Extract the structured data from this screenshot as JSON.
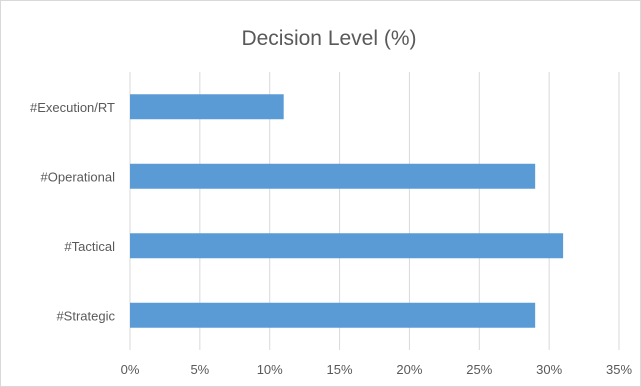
{
  "chart_data": {
    "type": "bar",
    "orientation": "horizontal",
    "title": "Decision Level (%)",
    "xlabel": "",
    "ylabel": "",
    "categories": [
      "#Strategic",
      "#Tactical",
      "#Operational",
      "#Execution/RT"
    ],
    "values": [
      0.29,
      0.31,
      0.29,
      0.11
    ],
    "xlim": [
      0,
      0.35
    ],
    "xticks": [
      0,
      0.05,
      0.1,
      0.15,
      0.2,
      0.25,
      0.3,
      0.35
    ],
    "xtick_labels": [
      "0%",
      "5%",
      "10%",
      "15%",
      "20%",
      "25%",
      "30%",
      "35%"
    ],
    "grid": "vertical",
    "legend": "none",
    "bar_color": "#5b9bd5",
    "gridline_color": "#d9d9d9",
    "text_color": "#595959"
  }
}
